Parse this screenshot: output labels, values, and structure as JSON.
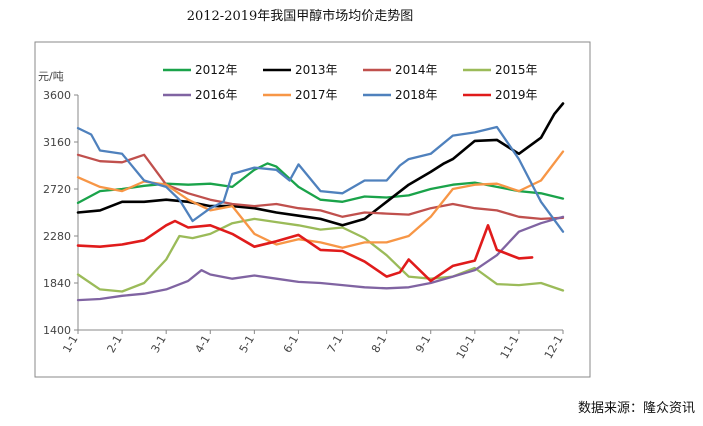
{
  "chart_data": {
    "type": "line",
    "title": "2012-2019年我国甲醇市场均价走势图",
    "ylabel": "元/吨",
    "source": "数据来源：隆众资讯",
    "ylim": [
      1400,
      3600
    ],
    "yticks": [
      1400,
      1840,
      2280,
      2720,
      3160,
      3600
    ],
    "xlim": [
      1,
      12
    ],
    "x_tick_labels": [
      "1-1",
      "2-1",
      "3-1",
      "4-1",
      "5-1",
      "6-1",
      "7-1",
      "8-1",
      "9-1",
      "10-1",
      "11-1",
      "12-1"
    ],
    "grid": false,
    "legend": "top",
    "series": [
      {
        "name": "2012年",
        "color": "#1aa34a",
        "x": [
          1,
          1.5,
          2,
          2.5,
          3,
          3.5,
          4,
          4.5,
          5,
          5.3,
          5.5,
          6,
          6.5,
          7,
          7.5,
          8,
          8.5,
          9,
          9.5,
          10,
          10.5,
          11,
          11.5,
          12
        ],
        "y": [
          2590,
          2700,
          2720,
          2750,
          2770,
          2760,
          2770,
          2740,
          2900,
          2960,
          2930,
          2740,
          2620,
          2600,
          2650,
          2640,
          2660,
          2720,
          2760,
          2780,
          2740,
          2700,
          2680,
          2630
        ]
      },
      {
        "name": "2013年",
        "color": "#000000",
        "x": [
          1,
          1.5,
          2,
          2.5,
          3,
          3.5,
          4,
          4.5,
          5,
          5.5,
          6,
          6.5,
          7,
          7.5,
          8,
          8.5,
          9,
          9.3,
          9.5,
          10,
          10.5,
          11,
          11.5,
          11.8,
          12
        ],
        "y": [
          2500,
          2520,
          2600,
          2600,
          2620,
          2600,
          2560,
          2560,
          2540,
          2500,
          2470,
          2440,
          2380,
          2440,
          2600,
          2760,
          2880,
          2960,
          3000,
          3170,
          3180,
          3050,
          3200,
          3420,
          3520
        ]
      },
      {
        "name": "2014年",
        "color": "#c0504d",
        "x": [
          1,
          1.5,
          2,
          2.5,
          3,
          3.5,
          4,
          4.5,
          5,
          5.5,
          6,
          6.5,
          7,
          7.5,
          8,
          8.5,
          9,
          9.5,
          10,
          10.5,
          11,
          11.5,
          12
        ],
        "y": [
          3040,
          2980,
          2970,
          3040,
          2760,
          2680,
          2620,
          2580,
          2560,
          2580,
          2540,
          2520,
          2460,
          2500,
          2490,
          2480,
          2540,
          2580,
          2540,
          2520,
          2460,
          2440,
          2450
        ]
      },
      {
        "name": "2015年",
        "color": "#9bbb59",
        "x": [
          1,
          1.5,
          2,
          2.5,
          3,
          3.3,
          3.6,
          4,
          4.5,
          5,
          5.5,
          6,
          6.5,
          7,
          7.5,
          8,
          8.5,
          9,
          9.5,
          10,
          10.5,
          11,
          11.5,
          12
        ],
        "y": [
          1920,
          1780,
          1760,
          1840,
          2060,
          2280,
          2260,
          2300,
          2400,
          2440,
          2410,
          2380,
          2340,
          2360,
          2260,
          2100,
          1900,
          1880,
          1900,
          1980,
          1830,
          1820,
          1840,
          1770
        ]
      },
      {
        "name": "2016年",
        "color": "#8064a2",
        "x": [
          1,
          1.5,
          2,
          2.5,
          3,
          3.5,
          3.8,
          4,
          4.5,
          5,
          5.5,
          6,
          6.5,
          7,
          7.5,
          8,
          8.5,
          9,
          9.5,
          10,
          10.5,
          11,
          11.5,
          12
        ],
        "y": [
          1680,
          1690,
          1720,
          1740,
          1780,
          1860,
          1960,
          1920,
          1880,
          1910,
          1880,
          1850,
          1840,
          1820,
          1800,
          1790,
          1800,
          1840,
          1900,
          1960,
          2100,
          2320,
          2400,
          2460
        ]
      },
      {
        "name": "2017年",
        "color": "#f79646",
        "x": [
          1,
          1.5,
          2,
          2.5,
          3,
          3.5,
          4,
          4.5,
          5,
          5.5,
          6,
          6.5,
          7,
          7.5,
          8,
          8.5,
          9,
          9.5,
          10,
          10.5,
          11,
          11.5,
          12
        ],
        "y": [
          2830,
          2740,
          2700,
          2790,
          2760,
          2620,
          2520,
          2560,
          2300,
          2200,
          2250,
          2220,
          2170,
          2220,
          2220,
          2280,
          2460,
          2720,
          2760,
          2770,
          2700,
          2800,
          3070
        ]
      },
      {
        "name": "2018年",
        "color": "#4f81bd",
        "x": [
          1,
          1.3,
          1.5,
          2,
          2.5,
          3,
          3.3,
          3.6,
          4,
          4.3,
          4.5,
          5,
          5.5,
          5.8,
          6,
          6.5,
          7,
          7.5,
          8,
          8.3,
          8.5,
          9,
          9.5,
          10,
          10.5,
          11,
          11.5,
          12
        ],
        "y": [
          3290,
          3230,
          3080,
          3050,
          2800,
          2740,
          2620,
          2420,
          2540,
          2600,
          2860,
          2920,
          2900,
          2800,
          2950,
          2700,
          2680,
          2800,
          2800,
          2940,
          3000,
          3050,
          3220,
          3250,
          3300,
          3000,
          2600,
          2320
        ]
      },
      {
        "name": "2019年",
        "color": "#e01b1b",
        "x": [
          1,
          1.5,
          2,
          2.5,
          3,
          3.2,
          3.5,
          4,
          4.5,
          5,
          5.5,
          6,
          6.5,
          7,
          7.5,
          8,
          8.3,
          8.5,
          9,
          9.5,
          10,
          10.3,
          10.5,
          11,
          11.3
        ],
        "y": [
          2190,
          2180,
          2200,
          2240,
          2380,
          2420,
          2360,
          2380,
          2300,
          2180,
          2230,
          2290,
          2150,
          2140,
          2040,
          1900,
          1940,
          2060,
          1860,
          2000,
          2050,
          2380,
          2150,
          2070,
          2080
        ]
      }
    ]
  }
}
